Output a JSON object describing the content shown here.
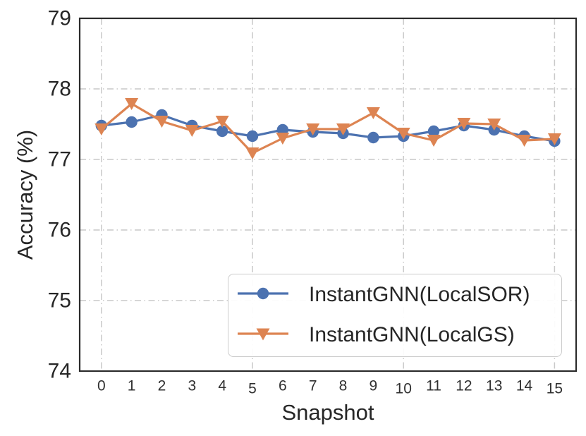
{
  "figure": {
    "background": "#ffffff",
    "spine_color": "#2b2b2b",
    "tick_label_color": "#262626",
    "x_tick_label_color": "#303030"
  },
  "chart_data": {
    "type": "line",
    "title": "",
    "xlabel": "Snapshot",
    "ylabel": "Accuracy (%)",
    "x": [
      0,
      1,
      2,
      3,
      4,
      5,
      6,
      7,
      8,
      9,
      10,
      11,
      12,
      13,
      14,
      15
    ],
    "xticks": [
      0,
      1,
      2,
      3,
      4,
      5,
      6,
      7,
      8,
      9,
      10,
      11,
      12,
      13,
      14,
      15
    ],
    "yticks": [
      74,
      75,
      76,
      77,
      78,
      79
    ],
    "ylim": [
      74,
      79
    ],
    "grid": {
      "style": "dash-dot",
      "color": "#c9c9c9",
      "x_gridlines_at": [
        0,
        5,
        10,
        15
      ],
      "y_gridlines_at": [
        75,
        76,
        77,
        78
      ]
    },
    "legend": {
      "position": "lower-right",
      "frame": true,
      "border_color": "#cccccc"
    },
    "series": [
      {
        "name": "InstantGNN(LocalSOR)",
        "color": "#4C72B0",
        "marker": "circle",
        "values": [
          77.48,
          77.53,
          77.63,
          77.48,
          77.4,
          77.33,
          77.42,
          77.39,
          77.37,
          77.31,
          77.33,
          77.4,
          77.48,
          77.42,
          77.33,
          77.26
        ]
      },
      {
        "name": "InstantGNN(LocalGS)",
        "color": "#DD8452",
        "marker": "triangle-down",
        "values": [
          77.43,
          77.79,
          77.54,
          77.41,
          77.54,
          77.09,
          77.3,
          77.43,
          77.43,
          77.66,
          77.37,
          77.27,
          77.51,
          77.5,
          77.27,
          77.29
        ]
      }
    ]
  }
}
